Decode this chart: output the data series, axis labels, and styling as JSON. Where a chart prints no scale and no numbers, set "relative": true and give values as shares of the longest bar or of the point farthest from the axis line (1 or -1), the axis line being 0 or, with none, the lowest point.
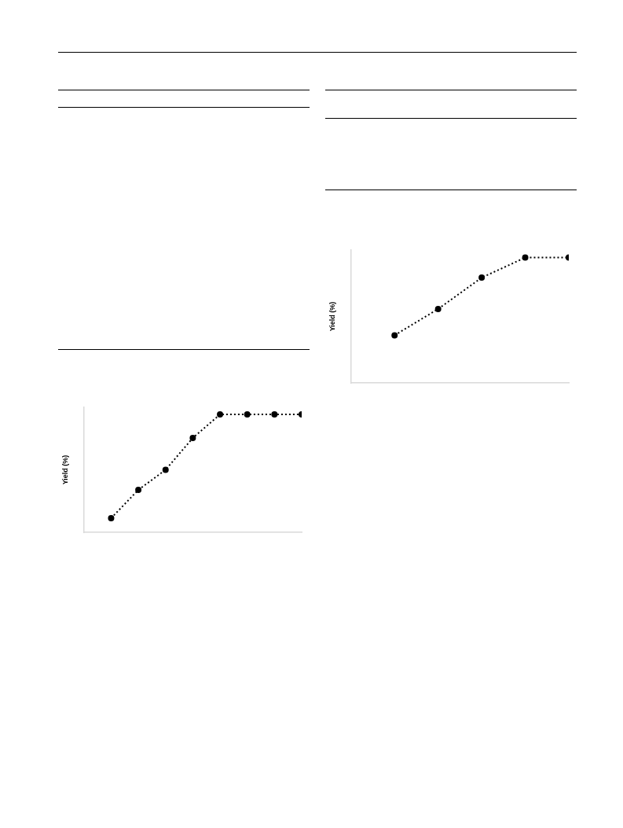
{
  "chart_data": [
    {
      "type": "line",
      "ylabel": "Yield (%)",
      "relative": true,
      "categories": [
        null,
        null,
        null,
        null,
        null,
        null,
        null,
        null
      ],
      "marker": "circle",
      "line_style": "dotted",
      "grid": false,
      "legend": false,
      "tick_labels": false,
      "series": [
        {
          "color": "#000000",
          "values": [
            0.12,
            0.36,
            0.53,
            0.8,
            1,
            1,
            1,
            1
          ]
        }
      ]
    },
    {
      "type": "line",
      "ylabel": "Yield (%)",
      "relative": true,
      "categories": [
        null,
        null,
        null,
        null,
        null
      ],
      "marker": "circle",
      "line_style": "dotted",
      "grid": false,
      "legend": false,
      "tick_labels": false,
      "series": [
        {
          "color": "#000000",
          "values": [
            0.38,
            0.59,
            0.84,
            1,
            1
          ]
        }
      ]
    }
  ]
}
